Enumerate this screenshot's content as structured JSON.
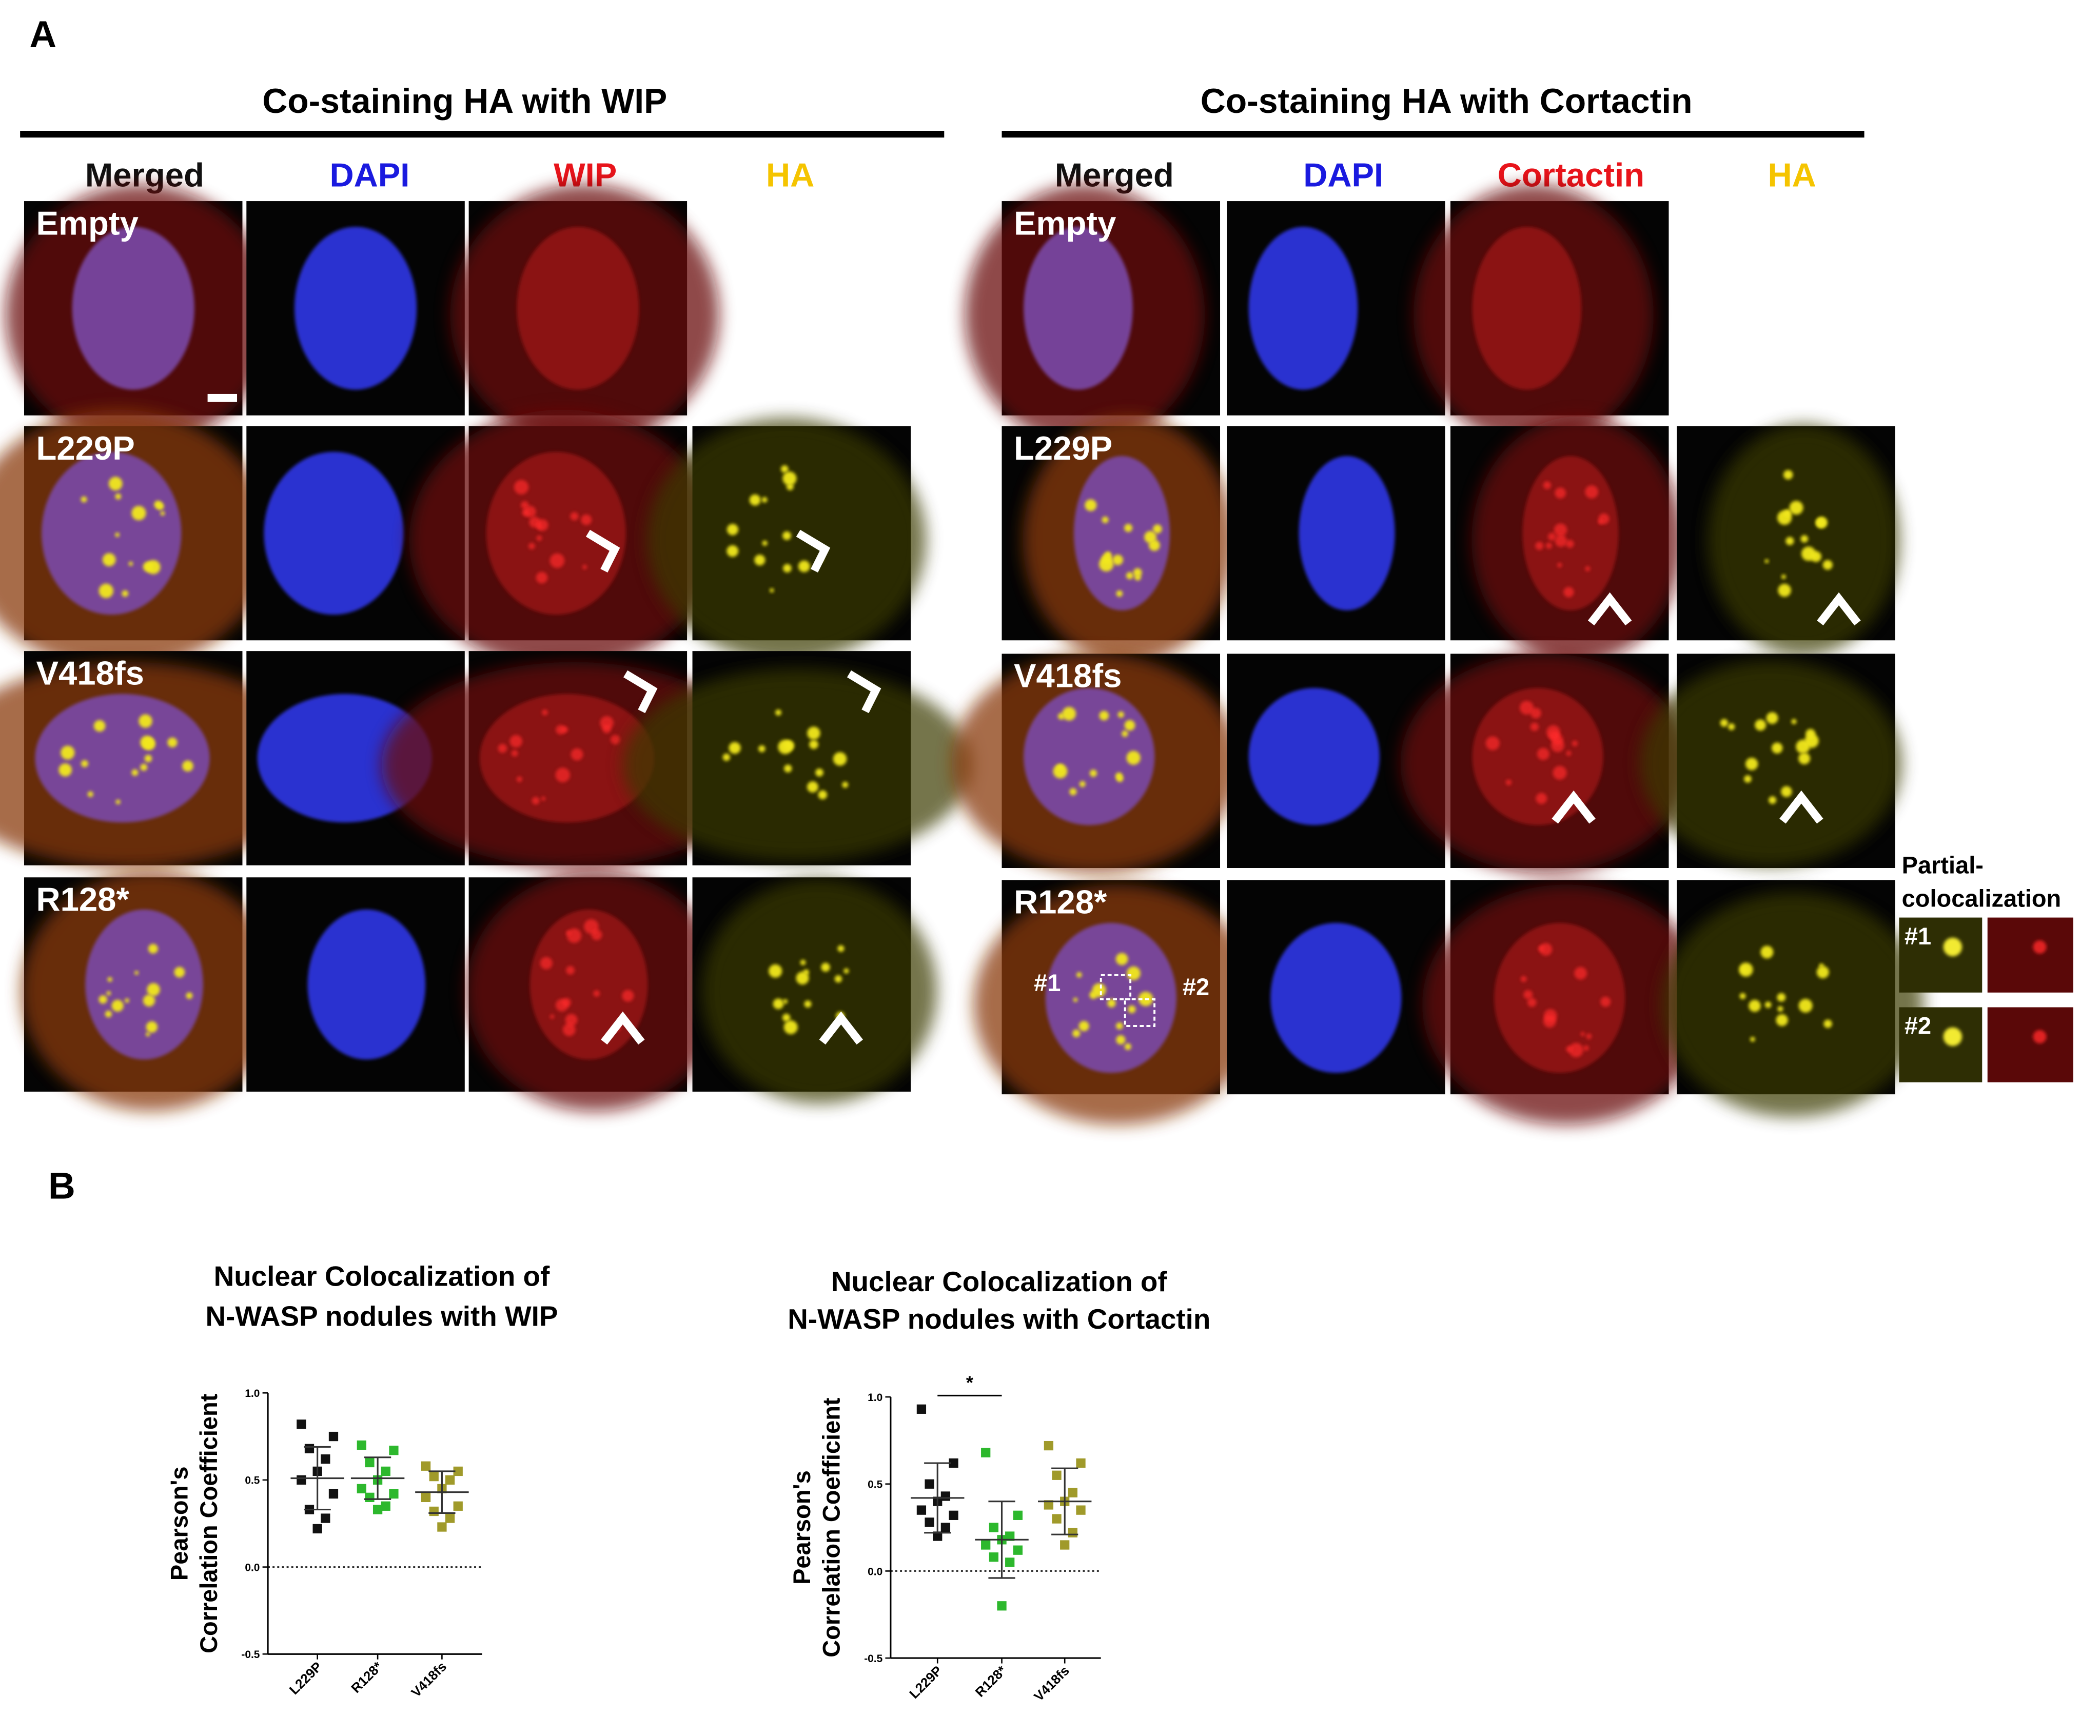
{
  "panel_labels": [
    "A",
    "B"
  ],
  "wip_panel": {
    "title": "Co-staining HA with WIP",
    "columns": [
      "Merged",
      "DAPI",
      "WIP",
      "HA"
    ],
    "rows": [
      "Empty",
      "L229P",
      "V418fs",
      "R128*"
    ]
  },
  "cortactin_panel": {
    "title": "Co-staining HA with Cortactin",
    "columns": [
      "Merged",
      "DAPI",
      "Cortactin",
      "HA"
    ],
    "rows": [
      "Empty",
      "L229P",
      "V418fs",
      "R128*"
    ],
    "roi_labels": [
      "#1",
      "#2"
    ]
  },
  "inset": {
    "title": [
      "Partial-",
      "colocalization"
    ],
    "labels": [
      "#1",
      "#2"
    ]
  },
  "chart_data": [
    {
      "type": "strip",
      "title": [
        "Nuclear Colocalization of",
        "N-WASP nodules with WIP"
      ],
      "ylabel": [
        "Pearson's",
        "Correlation Coefficient"
      ],
      "categories": [
        "L229P",
        "R128*",
        "V418fs"
      ],
      "groups": [
        {
          "color": "#111111",
          "values": [
            0.82,
            0.75,
            0.68,
            0.62,
            0.55,
            0.5,
            0.42,
            0.33,
            0.28,
            0.22
          ],
          "mean": 0.51,
          "sd": 0.18
        },
        {
          "color": "#2db82d",
          "values": [
            0.7,
            0.67,
            0.6,
            0.55,
            0.5,
            0.45,
            0.42,
            0.4,
            0.35,
            0.33
          ],
          "mean": 0.51,
          "sd": 0.12
        },
        {
          "color": "#a09a2a",
          "values": [
            0.58,
            0.55,
            0.52,
            0.5,
            0.45,
            0.4,
            0.35,
            0.32,
            0.28,
            0.23
          ],
          "mean": 0.43,
          "sd": 0.12
        }
      ],
      "ylim": [
        -0.5,
        1.0
      ],
      "yticks": [
        -0.5,
        {
          "value": 0,
          "label": "0.0"
        },
        0.5,
        {
          "value": 1,
          "label": "1.0"
        }
      ]
    },
    {
      "type": "strip",
      "title": [
        "Nuclear Colocalization of",
        "N-WASP nodules with Cortactin"
      ],
      "ylabel": [
        "Pearson's",
        "Correlation Coefficient"
      ],
      "categories": [
        "L229P",
        "R128*",
        "V418fs"
      ],
      "groups": [
        {
          "color": "#111111",
          "values": [
            0.93,
            0.62,
            0.5,
            0.43,
            0.4,
            0.35,
            0.32,
            0.28,
            0.25,
            0.2
          ],
          "mean": 0.42,
          "sd": 0.2
        },
        {
          "color": "#2db82d",
          "values": [
            0.68,
            0.32,
            0.25,
            0.2,
            0.18,
            0.15,
            0.12,
            0.08,
            0.05,
            -0.2
          ],
          "mean": 0.18,
          "sd": 0.22
        },
        {
          "color": "#a09a2a",
          "values": [
            0.72,
            0.62,
            0.55,
            0.45,
            0.4,
            0.38,
            0.35,
            0.3,
            0.22,
            0.15
          ],
          "mean": 0.4,
          "sd": 0.19
        }
      ],
      "ylim": [
        -0.5,
        1.0
      ],
      "yticks": [
        -0.5,
        {
          "value": 0,
          "label": "0.0"
        },
        0.5,
        {
          "value": 1,
          "label": "1.0"
        }
      ],
      "annotations": [
        "*"
      ]
    }
  ]
}
